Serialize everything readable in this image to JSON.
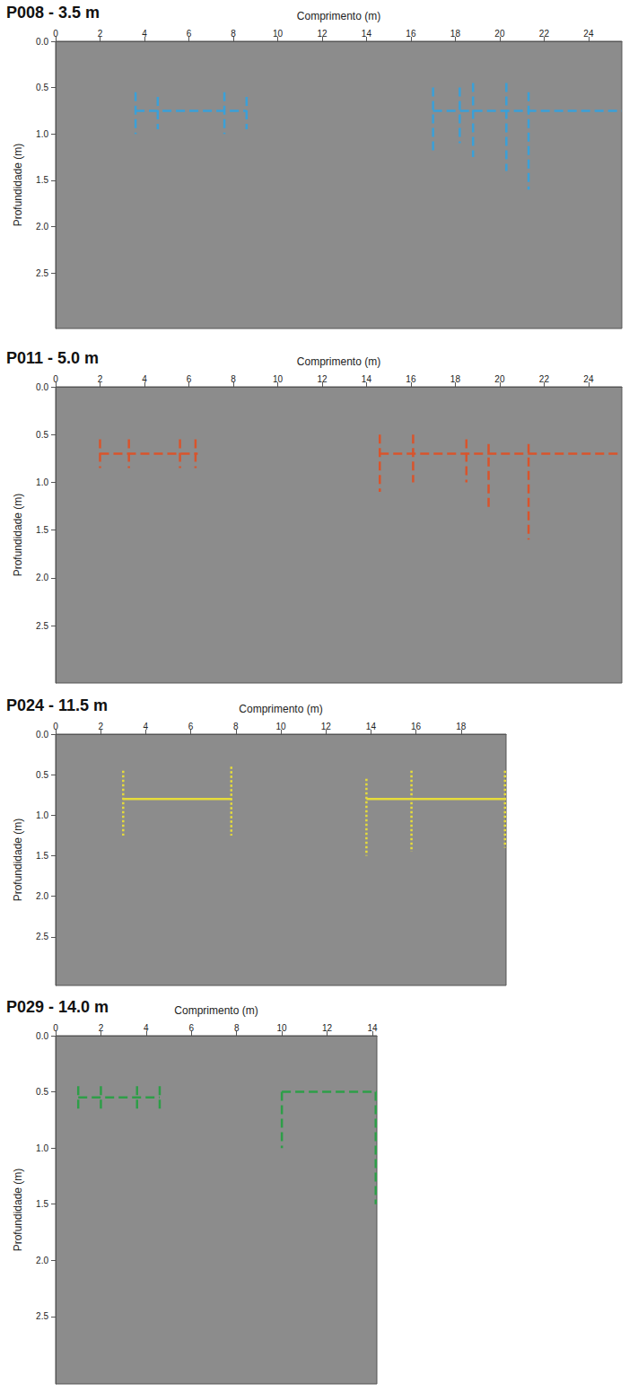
{
  "chart_data": [
    {
      "type": "line",
      "title": "P008 - 3.5 m",
      "xlabel": "Comprimento (m)",
      "ylabel": "Profundidade (m)",
      "xlim": [
        0,
        25.5
      ],
      "xticks": [
        0,
        2,
        4,
        6,
        8,
        10,
        12,
        14,
        16,
        18,
        20,
        22,
        24
      ],
      "ylim": [
        0,
        3.1
      ],
      "yticks": [
        {
          "value": 0,
          "label": "0.0"
        },
        0.5,
        {
          "value": 1,
          "label": "1.0"
        },
        1.5,
        {
          "value": 2,
          "label": "2.0"
        },
        2.5
      ],
      "series": [
        {
          "color": "#3aa0d8",
          "line_style": "dashed",
          "x": [
            3.6,
            8.6,
            null,
            17.0,
            25.5
          ],
          "values": [
            0.75,
            0.75,
            null,
            0.75,
            0.75
          ]
        },
        {
          "color": "#3aa0d8",
          "line_style": "dashed",
          "x": [
            3.6,
            3.6,
            null,
            4.6,
            4.6,
            null,
            7.6,
            7.6,
            null,
            8.6,
            8.6,
            null,
            17.0,
            17.0,
            null,
            18.2,
            18.2,
            null,
            18.8,
            18.8,
            null,
            20.3,
            20.3,
            null,
            21.3,
            21.3
          ],
          "values": [
            0.55,
            1.0,
            null,
            0.6,
            0.95,
            null,
            0.55,
            1.0,
            null,
            0.6,
            0.95,
            null,
            0.5,
            1.2,
            null,
            0.5,
            1.1,
            null,
            0.45,
            1.25,
            null,
            0.45,
            1.4,
            null,
            0.55,
            1.6
          ]
        }
      ]
    },
    {
      "type": "line",
      "title": "P011 - 5.0 m",
      "xlabel": "Comprimento (m)",
      "ylabel": "Profundidade (m)",
      "xlim": [
        0,
        25.5
      ],
      "xticks": [
        0,
        2,
        4,
        6,
        8,
        10,
        12,
        14,
        16,
        18,
        20,
        22,
        24
      ],
      "ylim": [
        0,
        3.1
      ],
      "yticks": [
        {
          "value": 0,
          "label": "0.0"
        },
        0.5,
        {
          "value": 1,
          "label": "1.0"
        },
        1.5,
        {
          "value": 2,
          "label": "2.0"
        },
        2.5
      ],
      "series": [
        {
          "color": "#d9542c",
          "line_style": "dashed",
          "x": [
            2.0,
            6.4,
            null,
            14.6,
            25.5
          ],
          "values": [
            0.7,
            0.7,
            null,
            0.7,
            0.7
          ]
        },
        {
          "color": "#d9542c",
          "line_style": "dashed",
          "x": [
            2.0,
            2.0,
            null,
            3.3,
            3.3,
            null,
            5.6,
            5.6,
            null,
            6.3,
            6.3,
            null,
            14.6,
            14.6,
            null,
            16.1,
            16.1,
            null,
            18.5,
            18.5,
            null,
            19.5,
            19.5,
            null,
            21.3,
            21.3
          ],
          "values": [
            0.55,
            0.85,
            null,
            0.55,
            0.85,
            null,
            0.55,
            0.85,
            null,
            0.55,
            0.85,
            null,
            0.5,
            1.1,
            null,
            0.5,
            1.0,
            null,
            0.55,
            1.0,
            null,
            0.6,
            1.3,
            null,
            0.6,
            1.6
          ]
        }
      ]
    },
    {
      "type": "line",
      "title": "P024 - 11.5 m",
      "xlabel": "Comprimento (m)",
      "ylabel": "Profundidade (m)",
      "xlim": [
        0,
        20
      ],
      "xticks": [
        0,
        2,
        4,
        6,
        8,
        10,
        12,
        14,
        16,
        18
      ],
      "ylim": [
        0,
        3.1
      ],
      "yticks": [
        {
          "value": 0,
          "label": "0.0"
        },
        0.5,
        {
          "value": 1,
          "label": "1.0"
        },
        1.5,
        {
          "value": 2,
          "label": "2.0"
        },
        2.5
      ],
      "series": [
        {
          "color": "#e6dc3a",
          "line_style": "solid",
          "x": [
            3.0,
            7.8,
            null,
            13.8,
            20.0
          ],
          "values": [
            0.8,
            0.8,
            null,
            0.8,
            0.8
          ]
        },
        {
          "color": "#e6dc3a",
          "line_style": "dotted",
          "x": [
            3.0,
            3.0,
            null,
            7.8,
            7.8,
            null,
            13.8,
            13.8,
            null,
            15.8,
            15.8,
            null,
            19.95,
            19.95
          ],
          "values": [
            0.45,
            1.25,
            null,
            0.4,
            1.25,
            null,
            0.55,
            1.5,
            null,
            0.45,
            1.45,
            null,
            0.45,
            1.4
          ]
        }
      ]
    },
    {
      "type": "line",
      "title": "P029 - 14.0 m",
      "xlabel": "Comprimento (m)",
      "ylabel": "Profundidade (m)",
      "xlim": [
        0,
        14.2
      ],
      "xticks": [
        0,
        2,
        4,
        6,
        8,
        10,
        12,
        14
      ],
      "ylim": [
        0,
        3.1
      ],
      "yticks": [
        {
          "value": 0,
          "label": "0.0"
        },
        0.5,
        {
          "value": 1,
          "label": "1.0"
        },
        1.5,
        {
          "value": 2,
          "label": "2.0"
        },
        2.5
      ],
      "series": [
        {
          "color": "#2e9e48",
          "line_style": "dashed",
          "x": [
            1.0,
            4.6,
            null,
            10.0,
            14.2
          ],
          "values": [
            0.55,
            0.55,
            null,
            0.5,
            0.5
          ]
        },
        {
          "color": "#2e9e48",
          "line_style": "dashed",
          "x": [
            1.0,
            1.0,
            null,
            2.0,
            2.0,
            null,
            3.6,
            3.6,
            null,
            4.6,
            4.6,
            null,
            10.0,
            10.0,
            null,
            14.15,
            14.15
          ],
          "values": [
            0.45,
            0.65,
            null,
            0.45,
            0.65,
            null,
            0.45,
            0.65,
            null,
            0.45,
            0.65,
            null,
            0.5,
            1.0,
            null,
            0.5,
            1.5
          ]
        }
      ]
    }
  ]
}
